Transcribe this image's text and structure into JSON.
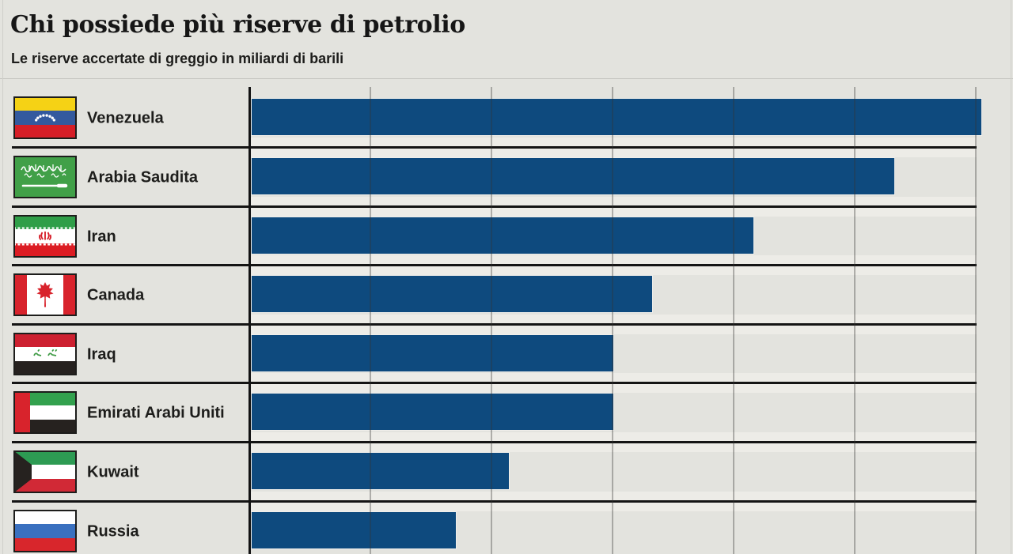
{
  "chart_data": {
    "type": "bar",
    "orientation": "horizontal",
    "title": "Chi possiede più riserve di petrolio",
    "subtitle": "Le riserve accertate di greggio in miliardi di barili",
    "unit": "miliardi di barili",
    "categories": [
      "Venezuela",
      "Arabia Saudita",
      "Iran",
      "Canada",
      "Iraq",
      "Emirati Arabi Uniti",
      "Kuwait",
      "Russia"
    ],
    "values": [
      302,
      266,
      208,
      166,
      150,
      150,
      107,
      85
    ],
    "flags": [
      "venezuela",
      "arabia-saudita",
      "iran",
      "canada",
      "iraq",
      "emirati-arabi-uniti",
      "kuwait",
      "russia"
    ],
    "xlim": [
      0,
      300
    ],
    "gridline_step": 50,
    "grid": true,
    "legend": false,
    "value_labels_visible": false,
    "axis_tick_labels_visible": false
  },
  "colors": {
    "background": "#e3e3de",
    "bar": "#0e4a7e",
    "separator": "#141414",
    "gridline": "#a2a29f",
    "separator_halo": "#edece7",
    "text": "#1d1d1b"
  }
}
